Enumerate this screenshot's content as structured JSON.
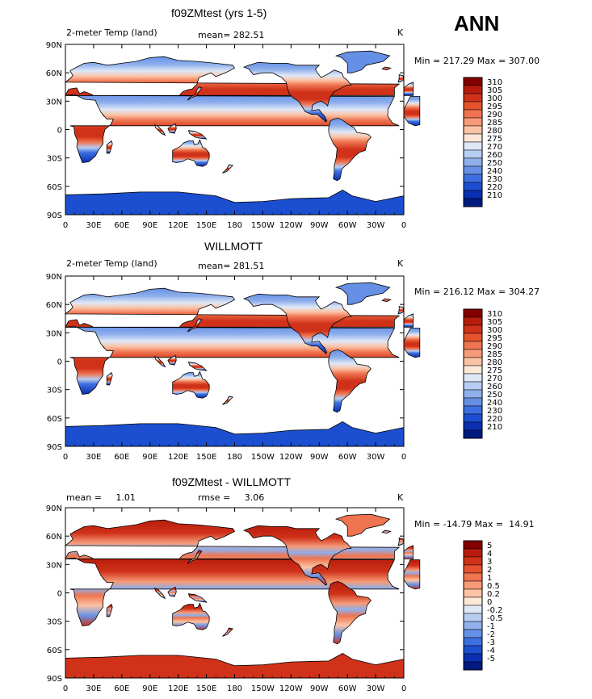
{
  "figure_label": "ANN",
  "chart_data": [
    {
      "type": "heatmap",
      "title": "f09ZMtest (yrs 1-5)",
      "variable_label": "2-meter Temp (land)",
      "mean_text": "mean= 282.51",
      "units": "K",
      "minmax_text": "Min = 217.29 Max = 307.00",
      "min": 217.29,
      "max": 307.0,
      "mean": 282.51,
      "x_ticks": [
        "0",
        "30E",
        "60E",
        "90E",
        "120E",
        "150E",
        "180",
        "150W",
        "120W",
        "90W",
        "60W",
        "30W",
        "0"
      ],
      "y_ticks": [
        "90N",
        "60N",
        "30N",
        "0",
        "30S",
        "60S",
        "90S"
      ],
      "colorbar_levels": [
        "310",
        "305",
        "300",
        "295",
        "290",
        "285",
        "280",
        "275",
        "270",
        "260",
        "250",
        "240",
        "230",
        "220",
        "210"
      ],
      "colorbar_colors": [
        "#840000",
        "#b71c0c",
        "#d03219",
        "#e4532d",
        "#ef7450",
        "#f79a77",
        "#fbc3a5",
        "#fde7d6",
        "#dfe8f7",
        "#b7cdf2",
        "#8fb0ec",
        "#6690e6",
        "#3d6fe0",
        "#1c4fd0",
        "#0a2fb0",
        "#001a80"
      ]
    },
    {
      "type": "heatmap",
      "title": "WILLMOTT",
      "variable_label": "2-meter Temp (land)",
      "mean_text": "mean= 281.51",
      "units": "K",
      "minmax_text": "Min = 216.12 Max = 304.27",
      "min": 216.12,
      "max": 304.27,
      "mean": 281.51,
      "x_ticks": [
        "0",
        "30E",
        "60E",
        "90E",
        "120E",
        "150E",
        "180",
        "150W",
        "120W",
        "90W",
        "60W",
        "30W",
        "0"
      ],
      "y_ticks": [
        "90N",
        "60N",
        "30N",
        "0",
        "30S",
        "60S",
        "90S"
      ],
      "colorbar_levels": [
        "310",
        "305",
        "300",
        "295",
        "290",
        "285",
        "280",
        "275",
        "270",
        "260",
        "250",
        "240",
        "230",
        "220",
        "210"
      ],
      "colorbar_colors": [
        "#840000",
        "#b71c0c",
        "#d03219",
        "#e4532d",
        "#ef7450",
        "#f79a77",
        "#fbc3a5",
        "#fde7d6",
        "#dfe8f7",
        "#b7cdf2",
        "#8fb0ec",
        "#6690e6",
        "#3d6fe0",
        "#1c4fd0",
        "#0a2fb0",
        "#001a80"
      ]
    },
    {
      "type": "heatmap",
      "title": "f09ZMtest - WILLMOTT",
      "mean_text": "mean =     1.01",
      "rmse_text": "rmse =     3.06",
      "units": "K",
      "minmax_text": "Min = -14.79 Max =  14.91",
      "min": -14.79,
      "max": 14.91,
      "mean": 1.01,
      "rmse": 3.06,
      "x_ticks": [
        "0",
        "30E",
        "60E",
        "90E",
        "120E",
        "150E",
        "180",
        "150W",
        "120W",
        "90W",
        "60W",
        "30W",
        "0"
      ],
      "y_ticks": [
        "90N",
        "60N",
        "30N",
        "0",
        "30S",
        "60S",
        "90S"
      ],
      "colorbar_levels": [
        "5",
        "4",
        "3",
        "2",
        "1",
        "0.5",
        "0.2",
        "0",
        "-0.2",
        "-0.5",
        "-1",
        "-2",
        "-3",
        "-4",
        "-5"
      ],
      "colorbar_colors": [
        "#840000",
        "#b71c0c",
        "#d03219",
        "#e4532d",
        "#ef7450",
        "#f79a77",
        "#fbc3a5",
        "#fde7d6",
        "#dfe8f7",
        "#b7cdf2",
        "#8fb0ec",
        "#6690e6",
        "#3d6fe0",
        "#1c4fd0",
        "#0a2fb0",
        "#001a80"
      ]
    }
  ]
}
